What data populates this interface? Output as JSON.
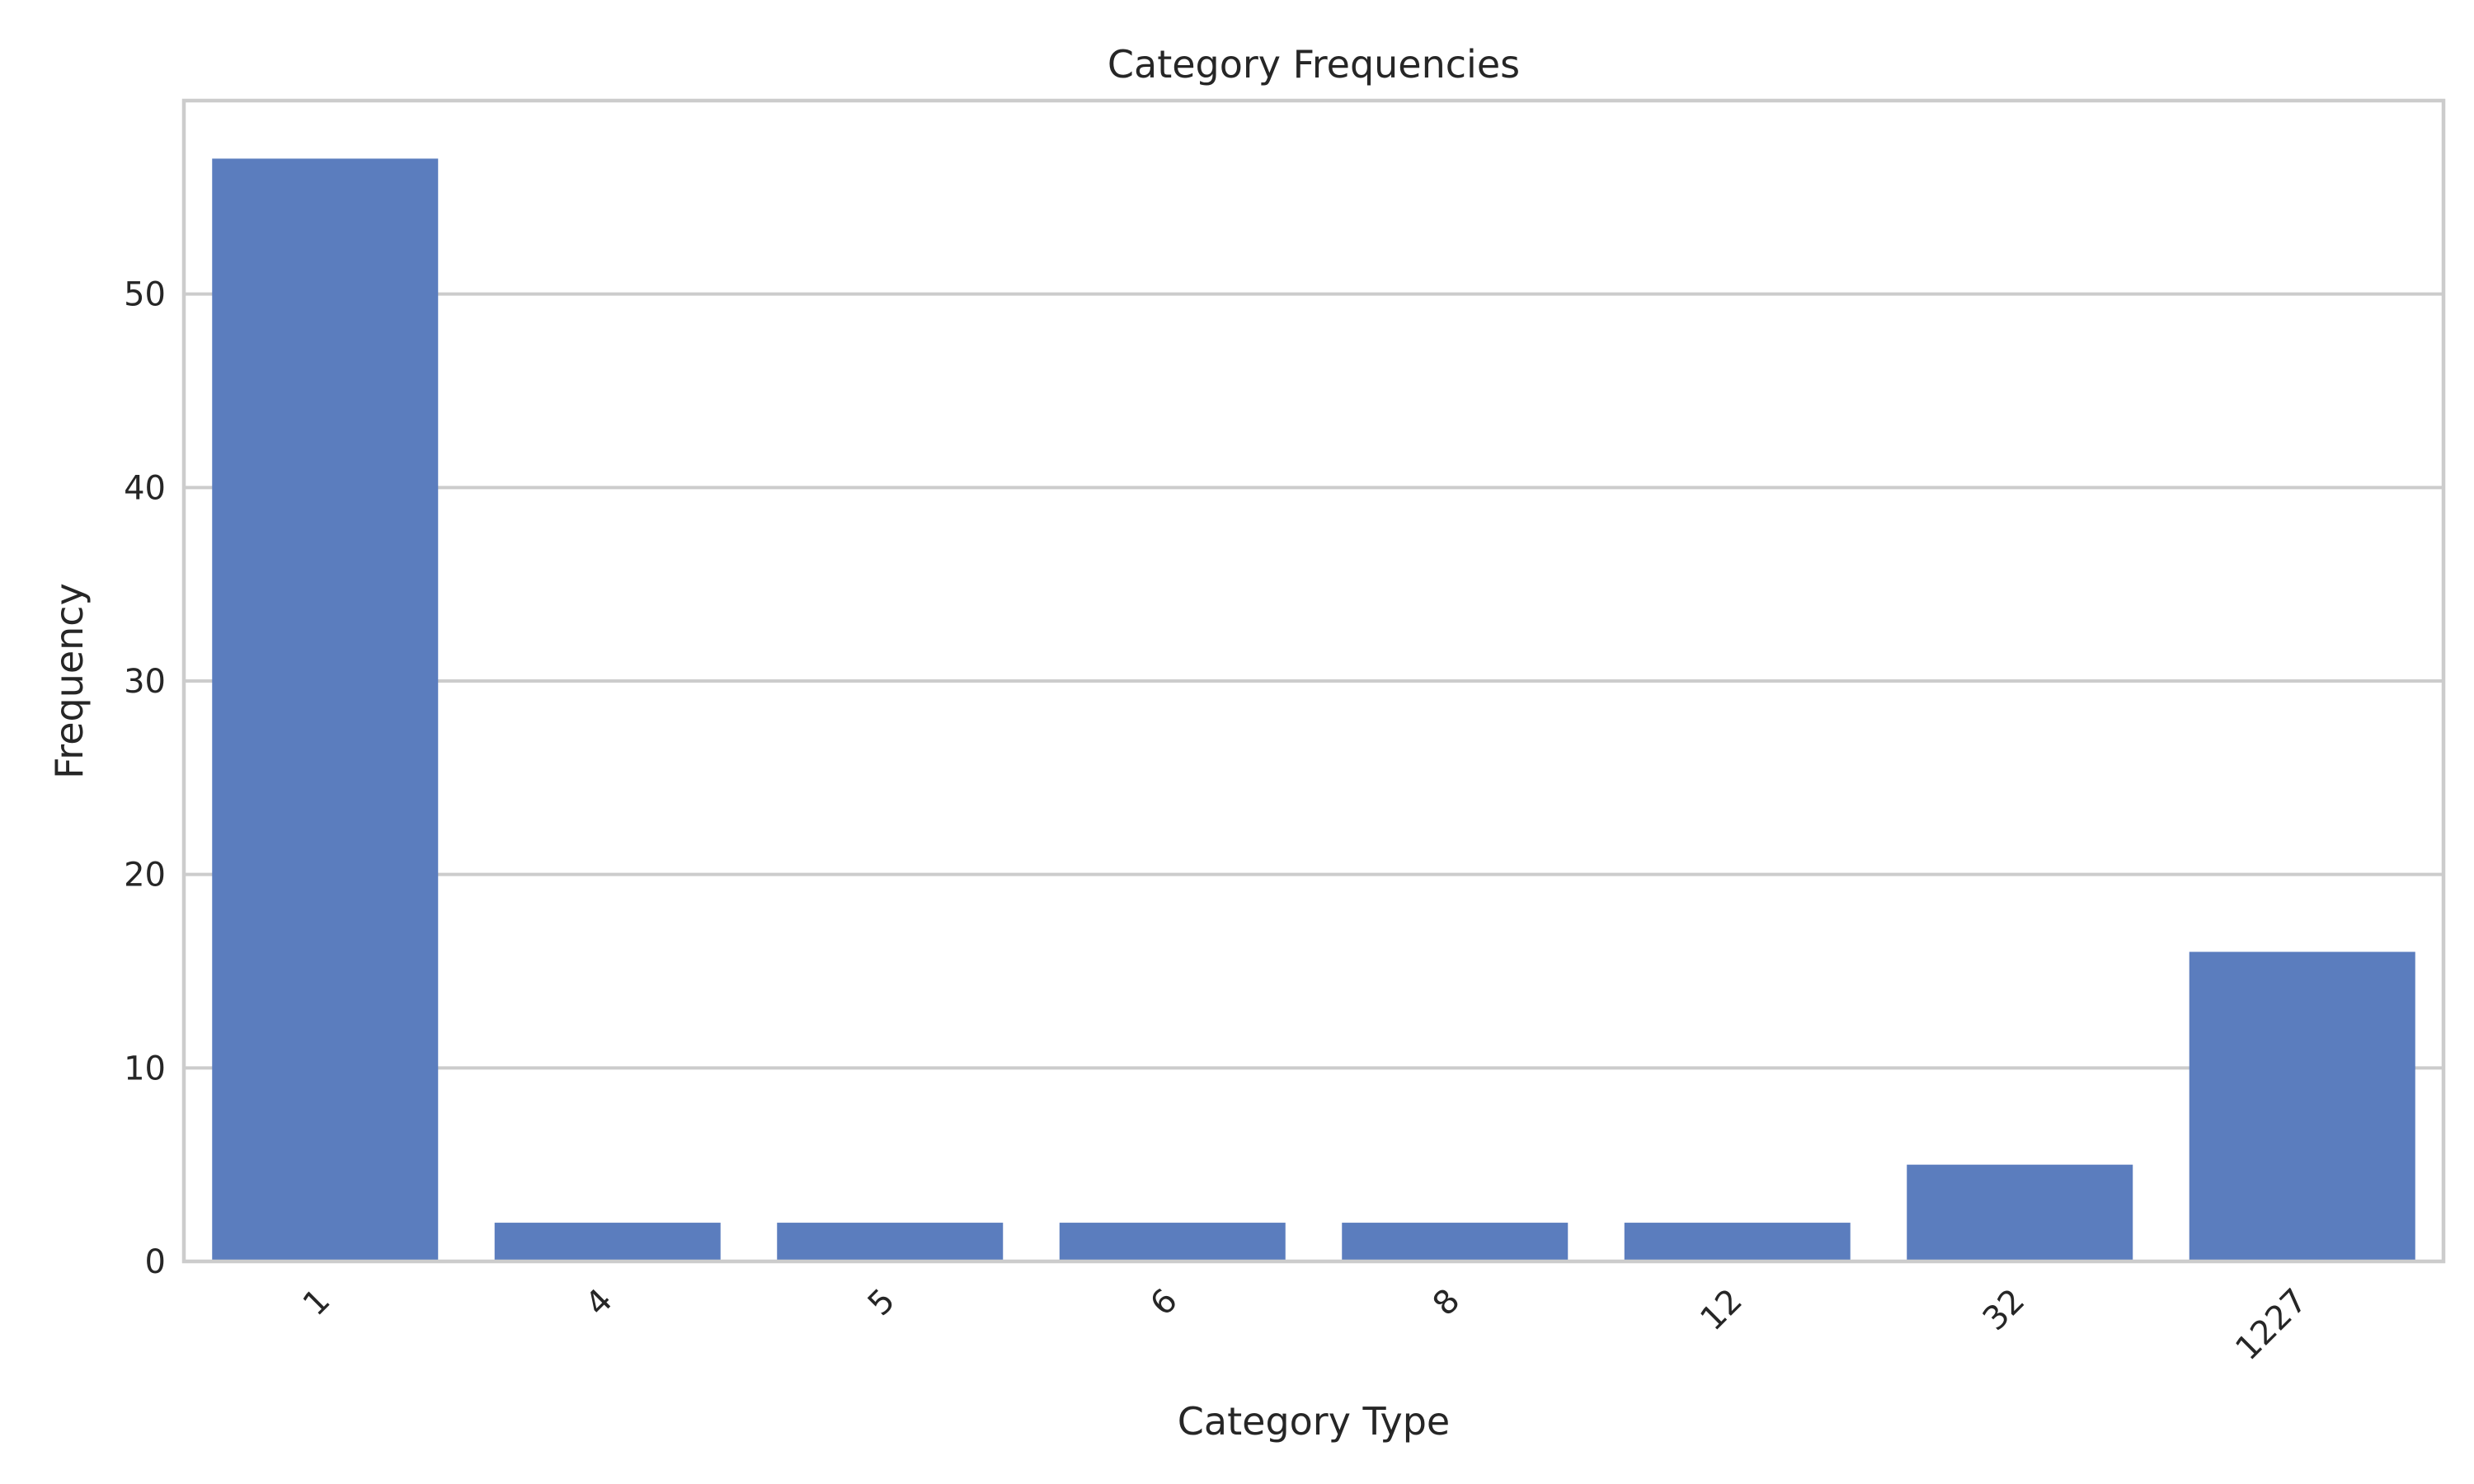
{
  "chart_data": {
    "type": "bar",
    "title": "Category Frequencies",
    "xlabel": "Category Type",
    "ylabel": "Frequency",
    "categories": [
      "1",
      "4",
      "5",
      "6",
      "8",
      "12",
      "32",
      "1227"
    ],
    "values": [
      57,
      2,
      2,
      2,
      2,
      2,
      5,
      16
    ],
    "ylim": [
      0,
      60
    ],
    "yticks": [
      0,
      10,
      20,
      30,
      40,
      50
    ],
    "grid": "y-axis horizontal lines",
    "bar_color": "#5b7dbe",
    "grid_color": "#cccccc",
    "x_tick_rotation": "45 degrees"
  }
}
